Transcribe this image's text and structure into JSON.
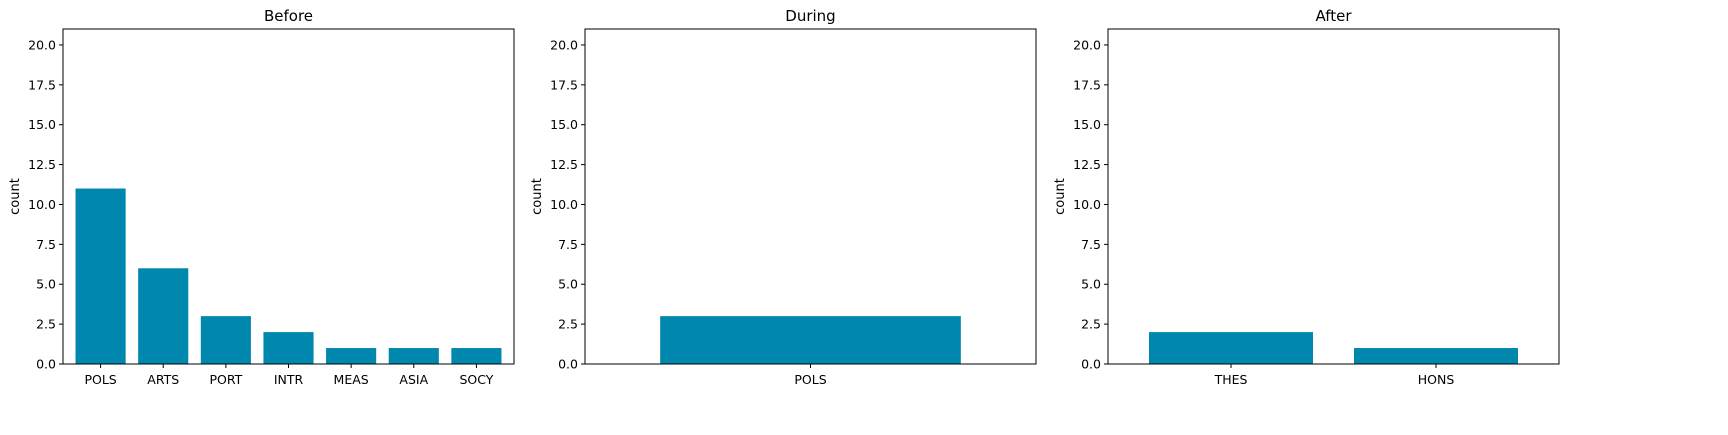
{
  "chart_data": [
    {
      "type": "bar",
      "title": "Before",
      "xlabel": "",
      "ylabel": "count",
      "categories": [
        "POLS",
        "ARTS",
        "PORT",
        "INTR",
        "MEAS",
        "ASIA",
        "SOCY"
      ],
      "values": [
        11,
        6,
        3,
        2,
        1,
        1,
        1
      ],
      "ylim": [
        0,
        21
      ],
      "yticks": [
        "0.0",
        "2.5",
        "5.0",
        "7.5",
        "10.0",
        "12.5",
        "15.0",
        "17.5",
        "20.0"
      ],
      "color": "#0087ad",
      "grid": false
    },
    {
      "type": "bar",
      "title": "During",
      "xlabel": "",
      "ylabel": "count",
      "categories": [
        "POLS"
      ],
      "values": [
        3
      ],
      "ylim": [
        0,
        21
      ],
      "yticks": [
        "0.0",
        "2.5",
        "5.0",
        "7.5",
        "10.0",
        "12.5",
        "15.0",
        "17.5",
        "20.0"
      ],
      "color": "#0087ad",
      "grid": false
    },
    {
      "type": "bar",
      "title": "After",
      "xlabel": "",
      "ylabel": "count",
      "categories": [
        "THES",
        "HONS"
      ],
      "values": [
        2,
        1
      ],
      "ylim": [
        0,
        21
      ],
      "yticks": [
        "0.0",
        "2.5",
        "5.0",
        "7.5",
        "10.0",
        "12.5",
        "15.0",
        "17.5",
        "20.0"
      ],
      "color": "#0087ad",
      "grid": false
    }
  ]
}
